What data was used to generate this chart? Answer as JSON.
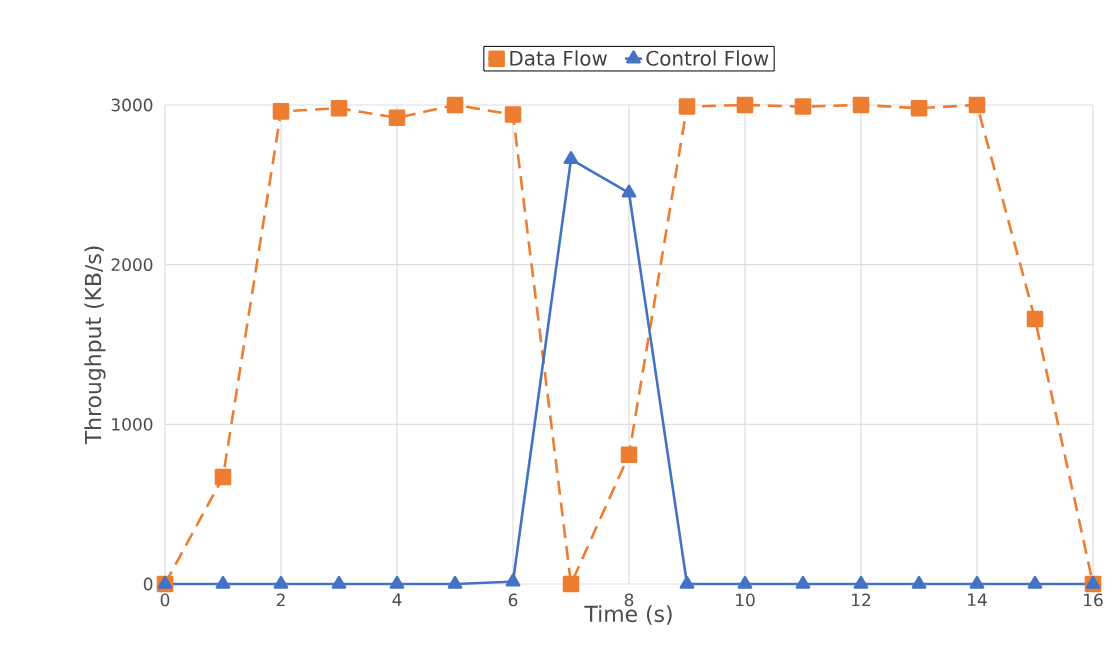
{
  "chart_data": {
    "type": "line",
    "xlabel": "Time (s)",
    "ylabel": "Throughput (KB/s)",
    "x": [
      0,
      1,
      2,
      3,
      4,
      5,
      6,
      7,
      8,
      9,
      10,
      11,
      12,
      13,
      14,
      15,
      16
    ],
    "series": [
      {
        "name": "Data Flow",
        "color": "#ed7d31",
        "marker": "square",
        "line_style": "dashed",
        "values": [
          0,
          670,
          2960,
          2980,
          2920,
          3000,
          2940,
          0,
          810,
          2990,
          3000,
          2990,
          3000,
          2980,
          3000,
          1660,
          0
        ]
      },
      {
        "name": "Control Flow",
        "color": "#4472c4",
        "marker": "triangle",
        "line_style": "solid",
        "values": [
          0,
          0,
          0,
          0,
          0,
          0,
          15,
          2660,
          2450,
          0,
          0,
          0,
          0,
          0,
          0,
          0,
          0
        ]
      }
    ],
    "xlim": [
      0,
      16
    ],
    "ylim": [
      0,
      3000
    ],
    "xticks": [
      0,
      2,
      4,
      6,
      8,
      10,
      12,
      14,
      16
    ],
    "yticks": [
      0,
      1000,
      2000,
      3000
    ],
    "grid": true,
    "legend": "top"
  }
}
